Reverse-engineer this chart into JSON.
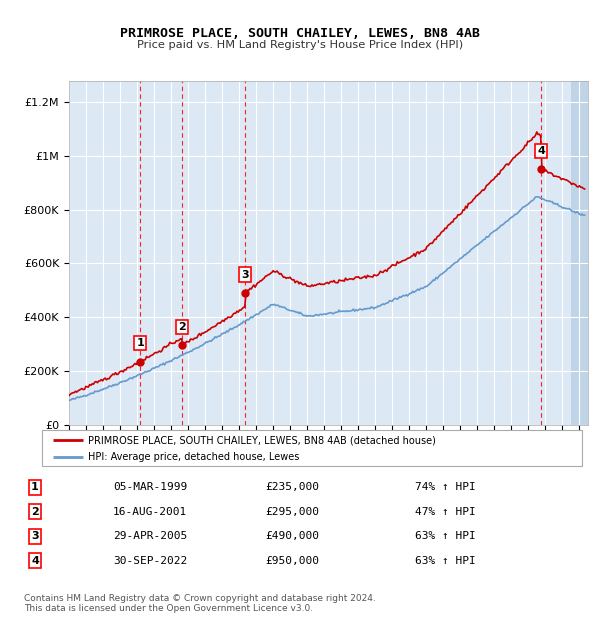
{
  "title": "PRIMROSE PLACE, SOUTH CHAILEY, LEWES, BN8 4AB",
  "subtitle": "Price paid vs. HM Land Registry's House Price Index (HPI)",
  "ylabel_ticks": [
    "£0",
    "£200K",
    "£400K",
    "£600K",
    "£800K",
    "£1M",
    "£1.2M"
  ],
  "ytick_values": [
    0,
    200000,
    400000,
    600000,
    800000,
    1000000,
    1200000
  ],
  "ylim": [
    0,
    1280000
  ],
  "xlim_start": 1995.0,
  "xlim_end": 2025.5,
  "bg_color": "#dce9f5",
  "hatch_color": "#c0d4e8",
  "grid_color": "#ffffff",
  "red_line_color": "#cc0000",
  "blue_line_color": "#6699cc",
  "sale_marker_color": "#cc0000",
  "purchases": [
    {
      "num": 1,
      "date_num": 1999.18,
      "price": 235000,
      "label": "1"
    },
    {
      "num": 2,
      "date_num": 2001.62,
      "price": 295000,
      "label": "2"
    },
    {
      "num": 3,
      "date_num": 2005.33,
      "price": 490000,
      "label": "3"
    },
    {
      "num": 4,
      "date_num": 2022.75,
      "price": 950000,
      "label": "4"
    }
  ],
  "table_rows": [
    {
      "num": "1",
      "date": "05-MAR-1999",
      "price": "£235,000",
      "change": "74% ↑ HPI"
    },
    {
      "num": "2",
      "date": "16-AUG-2001",
      "price": "£295,000",
      "change": "47% ↑ HPI"
    },
    {
      "num": "3",
      "date": "29-APR-2005",
      "price": "£490,000",
      "change": "63% ↑ HPI"
    },
    {
      "num": "4",
      "date": "30-SEP-2022",
      "price": "£950,000",
      "change": "63% ↑ HPI"
    }
  ],
  "footnote": "Contains HM Land Registry data © Crown copyright and database right 2024.\nThis data is licensed under the Open Government Licence v3.0.",
  "legend_red": "PRIMROSE PLACE, SOUTH CHAILEY, LEWES, BN8 4AB (detached house)",
  "legend_blue": "HPI: Average price, detached house, Lewes"
}
